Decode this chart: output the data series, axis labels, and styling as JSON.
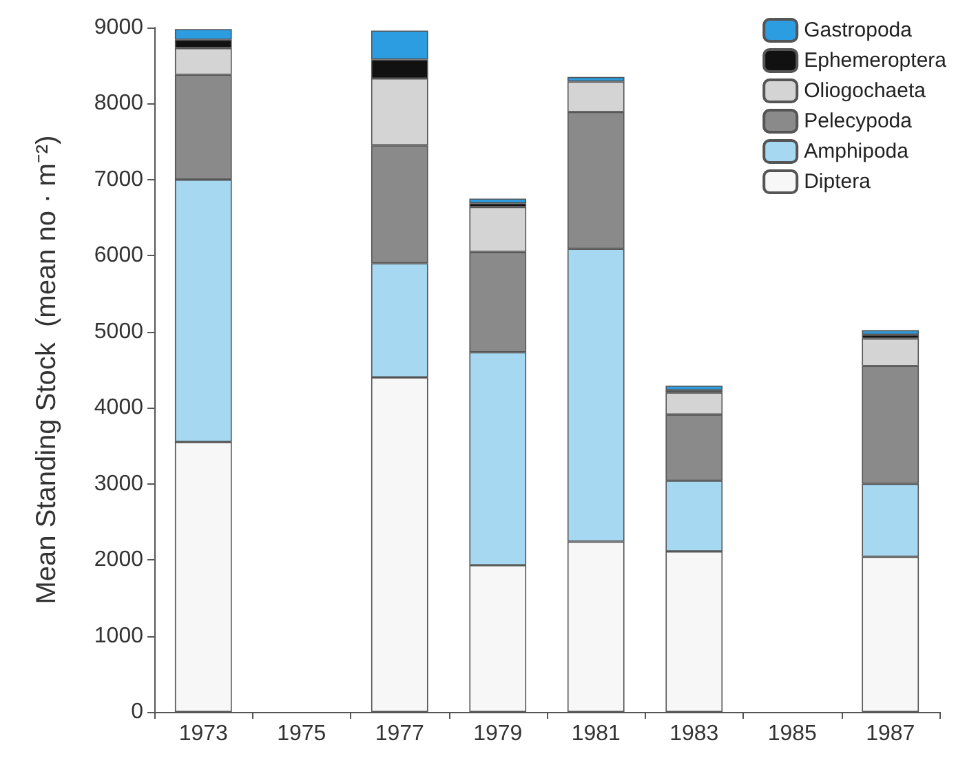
{
  "chart_data": {
    "type": "bar",
    "stacked": true,
    "ylabel": "Mean Standing Stock  (mean no · m⁻²)",
    "categories": [
      "1973",
      "1975",
      "1977",
      "1979",
      "1981",
      "1983",
      "1985",
      "1987"
    ],
    "series": [
      {
        "name": "Diptera",
        "color": "#f7f7f7",
        "values": [
          3550,
          null,
          4400,
          1930,
          2240,
          2110,
          null,
          2040
        ]
      },
      {
        "name": "Amphipoda",
        "color": "#a6d8f2",
        "values": [
          3450,
          null,
          1500,
          2800,
          3850,
          930,
          null,
          960
        ]
      },
      {
        "name": "Pelecypoda",
        "color": "#8a8a8a",
        "values": [
          1380,
          null,
          1550,
          1320,
          1800,
          870,
          null,
          1550
        ]
      },
      {
        "name": "Oliogochaeta",
        "color": "#d4d4d4",
        "values": [
          350,
          null,
          880,
          590,
          400,
          290,
          null,
          360
        ]
      },
      {
        "name": "Ephemeroptera",
        "color": "#111111",
        "values": [
          110,
          null,
          250,
          50,
          null,
          30,
          null,
          50
        ]
      },
      {
        "name": "Gastropoda",
        "color": "#2b9de0",
        "values": [
          140,
          null,
          380,
          60,
          60,
          60,
          null,
          60
        ]
      }
    ],
    "ylim": [
      0,
      9000
    ],
    "yticks": [
      0,
      1000,
      2000,
      3000,
      4000,
      5000,
      6000,
      7000,
      8000,
      9000
    ],
    "grid": false,
    "legend": "top right"
  }
}
